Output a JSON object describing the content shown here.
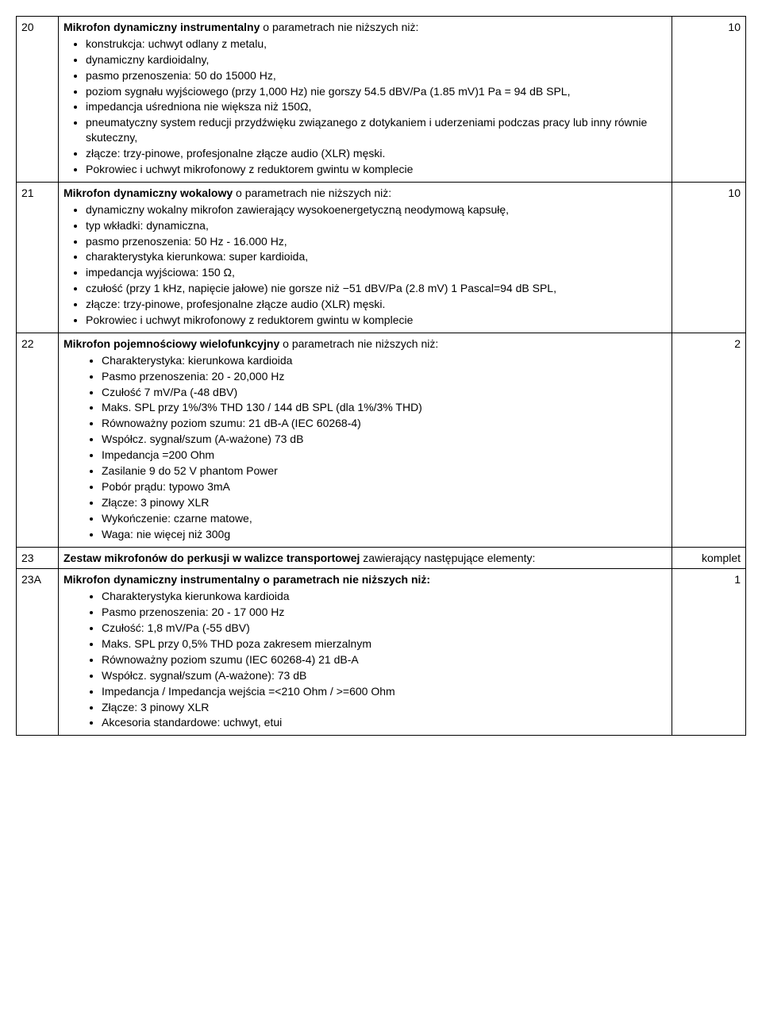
{
  "rows": [
    {
      "num": "20",
      "qty": "10",
      "title_prefix_bold": "Mikrofon dynamiczny instrumentalny",
      "title_rest": " o parametrach nie niższych niż:",
      "bullets": [
        "konstrukcja: uchwyt odlany z metalu,",
        "dynamiczny kardioidalny,",
        "pasmo przenoszenia: 50 do 15000 Hz,",
        "poziom sygnału wyjściowego (przy 1,000 Hz) nie gorszy 54.5 dBV/Pa (1.85 mV)1 Pa = 94 dB SPL,",
        "impedancja uśredniona nie większa niż 150Ω,",
        "pneumatyczny system reducji przydźwięku związanego z dotykaniem i uderzeniami podczas pracy lub inny równie skuteczny,",
        "złącze: trzy-pinowe, profesjonalne złącze audio (XLR) męski.",
        "Pokrowiec i uchwyt mikrofonowy z reduktorem gwintu w komplecie"
      ]
    },
    {
      "num": "21",
      "qty": "10",
      "title_prefix_bold": "Mikrofon dynamiczny wokalowy",
      "title_rest": " o parametrach nie niższych niż:",
      "bullets": [
        "dynamiczny wokalny mikrofon zawierający wysokoenergetyczną neodymową kapsułę,",
        "typ wkładki: dynamiczna,",
        "pasmo przenoszenia: 50 Hz - 16.000 Hz,",
        "charakterystyka kierunkowa: super kardioida,",
        "impedancja wyjściowa: 150 Ω,",
        "czułość (przy 1 kHz, napięcie jałowe) nie gorsze niż  −51 dBV/Pa (2.8 mV) 1 Pascal=94 dB SPL,",
        "złącze: trzy-pinowe, profesjonalne złącze audio (XLR) męski.",
        "Pokrowiec i uchwyt mikrofonowy z reduktorem gwintu w komplecie"
      ]
    },
    {
      "num": "22",
      "qty": "2",
      "title_prefix_bold": "Mikrofon pojemnościowy wielofunkcyjny",
      "title_rest": " o parametrach nie niższych niż:",
      "bullets_indented": true,
      "bullets": [
        "Charakterystyka: kierunkowa kardioida",
        "Pasmo przenoszenia: 20 - 20,000 Hz",
        "Czułość      7 mV/Pa (-48 dBV)",
        "Maks. SPL przy 1%/3% THD 130 / 144 dB SPL (dla 1%/3% THD)",
        "Równoważny poziom szumu: 21 dB-A (IEC 60268-4)",
        "Współcz. sygnał/szum (A-ważone)      73 dB",
        "Impedancja          =200 Ohm",
        "Zasilanie    9 do 52 V phantom Power",
        "Pobór prądu: typowo 3mA",
        "Złącze: 3 pinowy XLR",
        "Wykończenie: czarne matowe,",
        "Waga: nie więcej niż 300g"
      ]
    },
    {
      "num": "23",
      "qty": "komplet",
      "title_prefix_bold": "Zestaw mikrofonów do perkusji w walizce transportowej",
      "title_rest": " zawierający następujące elementy:",
      "bullets": []
    },
    {
      "num": "23A",
      "qty": "1",
      "title_prefix_bold": "Mikrofon dynamiczny instrumentalny o parametrach nie niższych niż:",
      "title_rest": "",
      "bullets_indented": true,
      "bullets": [
        "Charakterystyka kierunkowa  kardioida",
        "Pasmo przenoszenia: 20 - 17 000 Hz",
        "Czułość:     1,8 mV/Pa (-55 dBV)",
        "Maks. SPL przy 0,5% THD    poza zakresem mierzalnym",
        "Równoważny poziom szumu (IEC 60268-4)      21 dB-A",
        "Współcz. sygnał/szum (A-ważone): 73 dB",
        "Impedancja / Impedancja wejścia =<210 Ohm / >=600 Ohm",
        "Złącze: 3 pinowy XLR",
        "Akcesoria standardowe:  uchwyt, etui"
      ]
    }
  ]
}
